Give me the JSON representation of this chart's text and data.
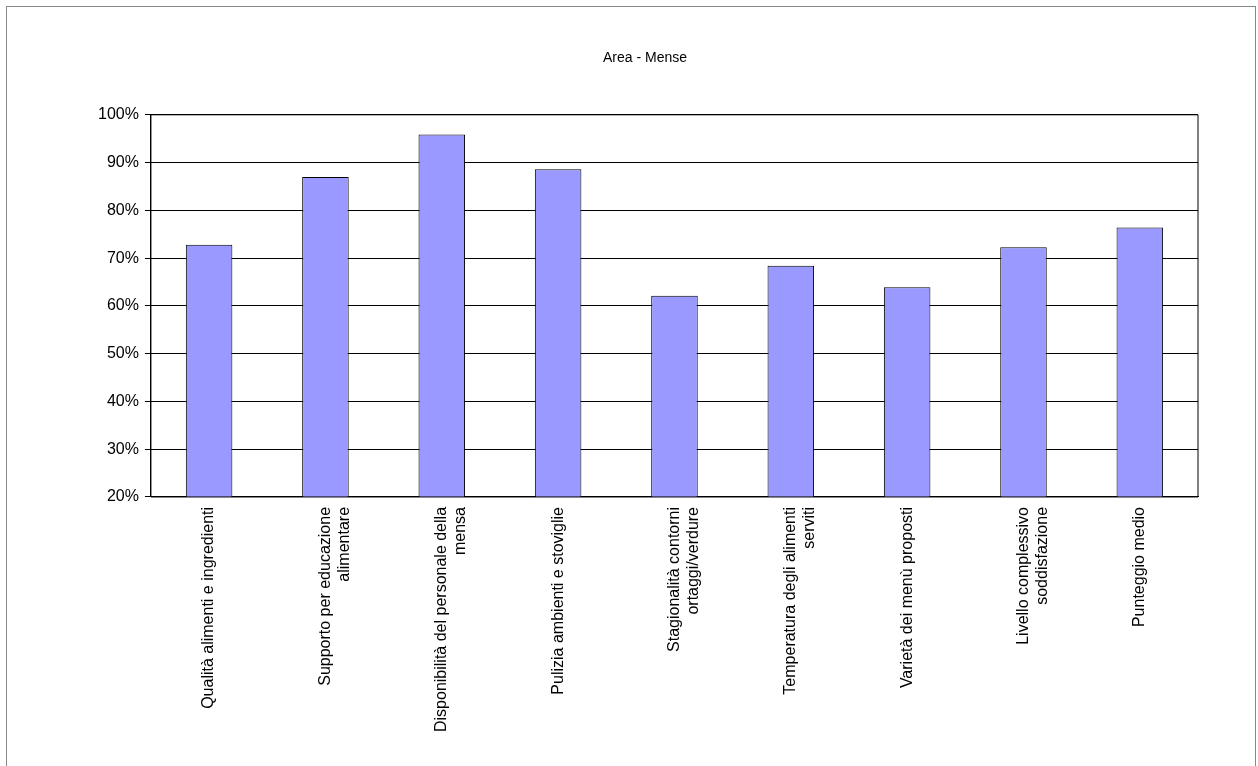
{
  "chart_data": {
    "type": "bar",
    "title": "Area - Mense",
    "categories": [
      "Qualità alimenti e ingredienti",
      "Supporto per educazione alimentare",
      "Disponibilità del personale della mensa",
      "Pulizia ambienti e stoviglie",
      "Stagionalità contorni ortaggi/verdure",
      "Temperatura degli alimenti serviti",
      "Varietà dei menù proposti",
      "Livello complessivo soddisfazione",
      "Punteggio medio"
    ],
    "values": [
      72.8,
      87.0,
      95.9,
      88.6,
      62.1,
      68.4,
      63.9,
      72.3,
      76.4
    ],
    "color": "#9999ff",
    "ylim": [
      20,
      100
    ],
    "yticks": [
      {
        "value": 20,
        "label": "20%"
      },
      {
        "value": 30,
        "label": "30%"
      },
      {
        "value": 40,
        "label": "40%"
      },
      {
        "value": 50,
        "label": "50%"
      },
      {
        "value": 60,
        "label": "60%"
      },
      {
        "value": 70,
        "label": "70%"
      },
      {
        "value": 80,
        "label": "80%"
      },
      {
        "value": 90,
        "label": "90%"
      },
      {
        "value": 100,
        "label": "100%"
      }
    ],
    "grid": "y",
    "legend": false
  }
}
